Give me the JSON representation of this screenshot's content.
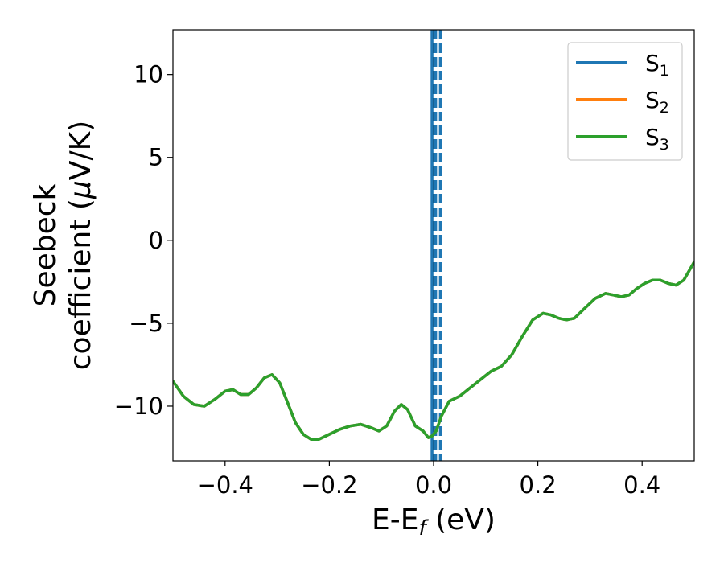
{
  "chart_data": {
    "type": "line",
    "xlabel": {
      "main": "E-E",
      "sub": "f",
      "unit": " (eV)"
    },
    "ylabel": {
      "line1": "Seebeck",
      "line2_pre": "coefficient  (",
      "mu": "μ",
      "line2_post": "V/K)"
    },
    "xlim": [
      -0.5,
      0.5
    ],
    "ylim": [
      -13.3,
      12.7
    ],
    "x_ticks": [
      -0.4,
      -0.2,
      0.0,
      0.2,
      0.4
    ],
    "x_tick_labels": [
      "−0.4",
      "−0.2",
      "0.0",
      "0.2",
      "0.4"
    ],
    "y_ticks": [
      10,
      5,
      0,
      -5,
      -10
    ],
    "y_tick_labels": [
      "10",
      "5",
      "0",
      "−5",
      "−10"
    ],
    "legend_position": "top-right",
    "vertical_lines": [
      {
        "x": 0.0,
        "color": "#000000",
        "style": "dashed"
      },
      {
        "x": -0.003,
        "color": "#1f77b4",
        "style": "solid"
      },
      {
        "x": 0.004,
        "color": "#1f77b4",
        "style": "dashed"
      },
      {
        "x": 0.013,
        "color": "#1f77b4",
        "style": "dashed"
      }
    ],
    "series": [
      {
        "name_main": "S",
        "name_sub": "1",
        "color": "#1f77b4",
        "same_as": "S3"
      },
      {
        "name_main": "S",
        "name_sub": "2",
        "color": "#ff7f0e",
        "same_as": "S3"
      },
      {
        "name_main": "S",
        "name_sub": "3",
        "color": "#2ca02c",
        "x": [
          -0.5,
          -0.48,
          -0.46,
          -0.44,
          -0.42,
          -0.4,
          -0.385,
          -0.37,
          -0.355,
          -0.34,
          -0.325,
          -0.31,
          -0.295,
          -0.28,
          -0.265,
          -0.25,
          -0.235,
          -0.22,
          -0.2,
          -0.18,
          -0.16,
          -0.14,
          -0.12,
          -0.105,
          -0.09,
          -0.075,
          -0.062,
          -0.05,
          -0.035,
          -0.02,
          -0.01,
          -0.003,
          0.005,
          0.015,
          0.03,
          0.05,
          0.07,
          0.09,
          0.11,
          0.13,
          0.15,
          0.17,
          0.19,
          0.21,
          0.225,
          0.24,
          0.255,
          0.27,
          0.29,
          0.31,
          0.33,
          0.345,
          0.36,
          0.375,
          0.39,
          0.405,
          0.42,
          0.435,
          0.45,
          0.465,
          0.48,
          0.5
        ],
        "y": [
          -8.5,
          -9.4,
          -9.9,
          -10.0,
          -9.6,
          -9.1,
          -9.0,
          -9.3,
          -9.3,
          -8.9,
          -8.3,
          -8.1,
          -8.6,
          -9.8,
          -11.0,
          -11.7,
          -12.0,
          -12.0,
          -11.7,
          -11.4,
          -11.2,
          -11.1,
          -11.3,
          -11.5,
          -11.2,
          -10.3,
          -9.9,
          -10.2,
          -11.2,
          -11.5,
          -11.9,
          -11.8,
          -11.5,
          -10.6,
          -9.7,
          -9.4,
          -8.9,
          -8.4,
          -7.9,
          -7.6,
          -6.9,
          -5.8,
          -4.8,
          -4.4,
          -4.5,
          -4.7,
          -4.8,
          -4.7,
          -4.1,
          -3.5,
          -3.2,
          -3.3,
          -3.4,
          -3.3,
          -2.9,
          -2.6,
          -2.4,
          -2.4,
          -2.6,
          -2.7,
          -2.4,
          -1.3
        ]
      }
    ]
  }
}
